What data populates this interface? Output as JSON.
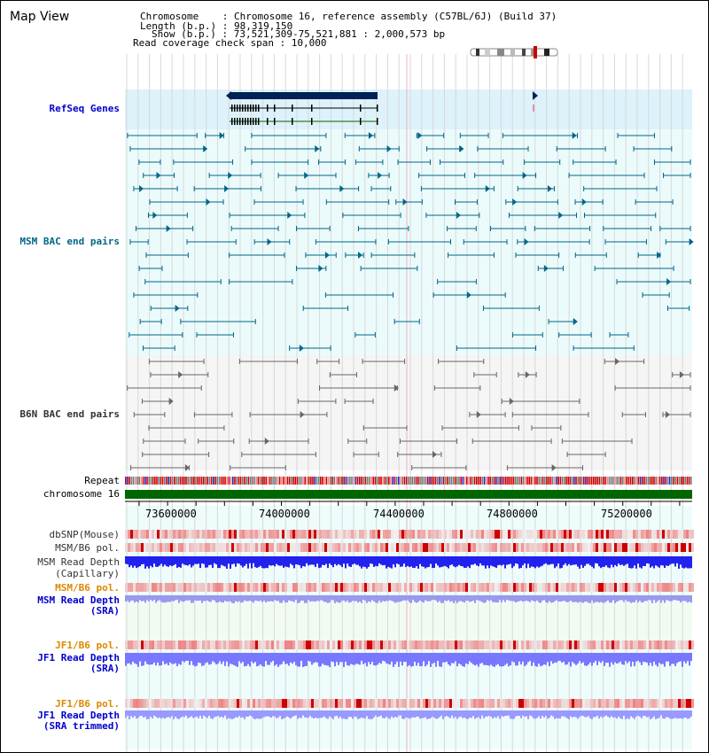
{
  "title": "Map View",
  "info": {
    "chromosome": "Chromosome    : Chromosome 16, reference assembly (C57BL/6J) (Build 37)",
    "length": "Length (b.p.) : 98,319,150",
    "show": "Show (b.p.) : 73,521,309-75,521,881 : 2,000,573 bp",
    "span": "Read coverage check span : 10,000"
  },
  "tracks": {
    "refseq": "RefSeq Genes",
    "msm_bac": "MSM BAC end pairs",
    "b6n_bac": "B6N BAC end pairs",
    "repeat": "Repeat",
    "chromosome": "chromosome 16",
    "dbsnp": "dbSNP(Mouse)",
    "msm_b6_pol_1": "MSM/B6 pol.",
    "msm_read_depth_cap_1": "MSM Read Depth",
    "msm_read_depth_cap_2": "(Capillary)",
    "msm_b6_pol_2": "MSM/B6 pol.",
    "msm_read_depth_sra_1": "MSM Read Depth",
    "msm_read_depth_sra_2": "(SRA)",
    "jf1_b6_pol_1": "JF1/B6 pol.",
    "jf1_read_depth_1": "JF1 Read Depth",
    "jf1_read_depth_2": "(SRA)",
    "jf1_b6_pol_2": "JF1/B6 pol.",
    "jf1_read_depth_tr_1": "JF1 Read Depth",
    "jf1_read_depth_tr_2": "(SRA trimmed)"
  },
  "axis": {
    "ticks": [
      "73600000",
      "74000000",
      "74400000",
      "74800000",
      "75200000"
    ]
  },
  "colors": {
    "label_blue": "#0000cc",
    "label_teal": "#006688",
    "label_gray": "#333333",
    "label_orange": "#dd8800",
    "refseq_bg": "#ddf2fb",
    "msm_bg": "#ebfbfb",
    "b6n_bg": "#f5f5f5",
    "chromosome_bar": "#006600",
    "depth_blue": "#2222ee",
    "depth_light": "#7777ff"
  }
}
